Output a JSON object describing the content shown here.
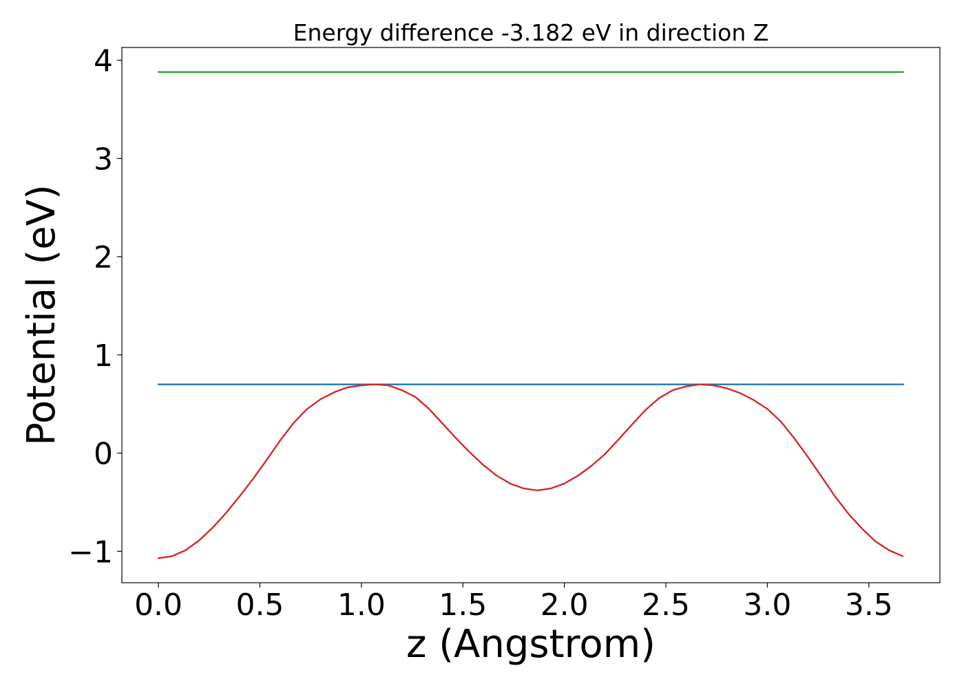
{
  "chart_data": {
    "type": "line",
    "title": "Energy difference -3.182 eV in direction Z",
    "xlabel": "z (Angstrom)",
    "ylabel": "Potential (eV)",
    "xlim": [
      -0.18,
      3.85
    ],
    "ylim": [
      -1.32,
      4.13
    ],
    "xticks": [
      {
        "value": 0.0,
        "label": "0.0"
      },
      {
        "value": 0.5,
        "label": "0.5"
      },
      {
        "value": 1.0,
        "label": "1.0"
      },
      {
        "value": 1.5,
        "label": "1.5"
      },
      {
        "value": 2.0,
        "label": "2.0"
      },
      {
        "value": 2.5,
        "label": "2.5"
      },
      {
        "value": 3.0,
        "label": "3.0"
      },
      {
        "value": 3.5,
        "label": "3.5"
      }
    ],
    "yticks": [
      {
        "value": -1,
        "label": "−1"
      },
      {
        "value": 0,
        "label": "0"
      },
      {
        "value": 1,
        "label": "1"
      },
      {
        "value": 2,
        "label": "2"
      },
      {
        "value": 3,
        "label": "3"
      },
      {
        "value": 4,
        "label": "4"
      }
    ],
    "grid": false,
    "series": [
      {
        "color": "#2ca02c",
        "x": [
          0.0,
          3.67
        ],
        "y": [
          3.88,
          3.88
        ]
      },
      {
        "color": "#1f77b4",
        "x": [
          0.0,
          3.67
        ],
        "y": [
          0.7,
          0.7
        ]
      },
      {
        "color": "#d62728",
        "x": [
          0.0,
          0.067,
          0.133,
          0.2,
          0.267,
          0.333,
          0.4,
          0.467,
          0.533,
          0.6,
          0.667,
          0.733,
          0.8,
          0.867,
          0.933,
          1.0,
          1.067,
          1.133,
          1.2,
          1.267,
          1.333,
          1.4,
          1.467,
          1.533,
          1.6,
          1.667,
          1.733,
          1.8,
          1.867,
          1.933,
          2.0,
          2.067,
          2.133,
          2.2,
          2.267,
          2.333,
          2.4,
          2.467,
          2.533,
          2.6,
          2.667,
          2.733,
          2.8,
          2.867,
          2.933,
          3.0,
          3.067,
          3.133,
          3.2,
          3.267,
          3.333,
          3.4,
          3.467,
          3.533,
          3.6,
          3.667
        ],
        "y": [
          -1.07,
          -1.05,
          -0.99,
          -0.89,
          -0.76,
          -0.61,
          -0.44,
          -0.26,
          -0.07,
          0.13,
          0.31,
          0.45,
          0.55,
          0.62,
          0.67,
          0.69,
          0.7,
          0.69,
          0.64,
          0.57,
          0.45,
          0.3,
          0.15,
          0.01,
          -0.12,
          -0.23,
          -0.31,
          -0.36,
          -0.38,
          -0.36,
          -0.31,
          -0.23,
          -0.13,
          -0.01,
          0.14,
          0.29,
          0.44,
          0.56,
          0.64,
          0.68,
          0.7,
          0.69,
          0.66,
          0.61,
          0.54,
          0.45,
          0.32,
          0.15,
          -0.04,
          -0.24,
          -0.44,
          -0.62,
          -0.77,
          -0.9,
          -0.99,
          -1.05
        ]
      }
    ]
  }
}
